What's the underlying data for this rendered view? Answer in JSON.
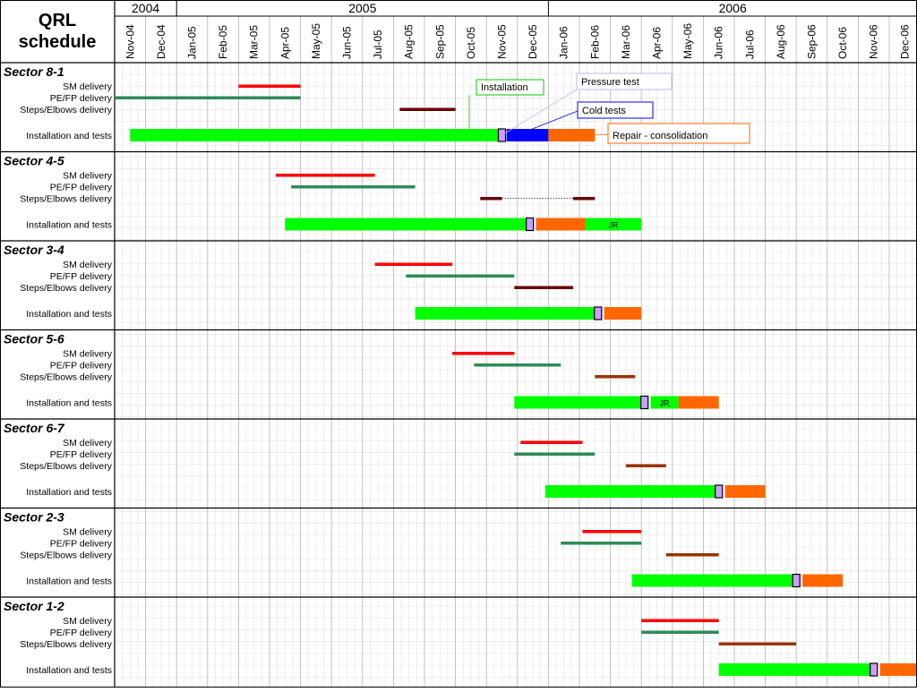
{
  "title_lines": [
    "QRL",
    "schedule"
  ],
  "years": [
    {
      "label": "2004",
      "start": 0,
      "end": 2
    },
    {
      "label": "2005",
      "start": 2,
      "end": 14
    },
    {
      "label": "2006",
      "start": 14,
      "end": 26
    }
  ],
  "months": [
    "Nov-04",
    "Dec-04",
    "Jan-05",
    "Feb-05",
    "Mar-05",
    "Apr-05",
    "May-05",
    "Jun-05",
    "Jul-05",
    "Aug-05",
    "Sep-05",
    "Oct-05",
    "Nov-05",
    "Dec-05",
    "Jan-06",
    "Feb-06",
    "Mar-06",
    "Apr-06",
    "May-06",
    "Jun-06",
    "Jul-06",
    "Aug-06",
    "Sep-06",
    "Oct-06",
    "Nov-06",
    "Dec-06"
  ],
  "row_labels": [
    "SM delivery",
    "PE/FP delivery",
    "Steps/Elbows delivery",
    "Installation and tests"
  ],
  "colors": {
    "sm": "#ff0000",
    "pefp": "#2e8b57",
    "steps_dark": "#6b0000",
    "steps_brown": "#993300",
    "installation": "#00ff00",
    "cold": "#0000ff",
    "repair": "#ff6600",
    "marker": "#c8a0ff",
    "grid": "#cccccc",
    "separator": "#000000"
  },
  "callouts": {
    "installation": "Installation",
    "pressure": "Pressure test",
    "cold": "Cold tests",
    "repair": "Repair - consolidation"
  },
  "chart_data": {
    "type": "gantt",
    "unit": "months from Nov-04",
    "sectors": [
      {
        "name": "Sector 8-1",
        "sm": [
          4,
          6
        ],
        "pefp": [
          0,
          6
        ],
        "steps": [
          [
            9.2,
            11
          ]
        ],
        "steps_color": "dark",
        "install": [
          0.5,
          12.5
        ],
        "marker": 12.5,
        "cold": [
          12.65,
          14
        ],
        "repair": [
          14,
          15.5
        ],
        "jr": ""
      },
      {
        "name": "Sector 4-5",
        "sm": [
          5.2,
          8.4
        ],
        "pefp": [
          5.7,
          9.7
        ],
        "steps": [
          [
            11.8,
            12.5
          ],
          [
            14.8,
            15.5
          ]
        ],
        "steps_dotted": [
          12.5,
          14.8
        ],
        "steps_color": "dark",
        "install": [
          5.5,
          13.3
        ],
        "marker": 13.4,
        "repair": [
          13.6,
          15.2
        ],
        "post": [
          15.2,
          17
        ],
        "jr": "JR"
      },
      {
        "name": "Sector 3-4",
        "sm": [
          8.4,
          10.9
        ],
        "pefp": [
          9.4,
          12.9
        ],
        "steps": [
          [
            12.9,
            14.8
          ]
        ],
        "steps_color": "dark",
        "install": [
          9.7,
          15.5
        ],
        "marker": 15.6,
        "repair": [
          15.8,
          17
        ],
        "jr": ""
      },
      {
        "name": "Sector 5-6",
        "sm": [
          10.9,
          12.9
        ],
        "pefp": [
          11.6,
          14.4
        ],
        "steps": [
          [
            15.5,
            16.8
          ]
        ],
        "steps_color": "brown",
        "install": [
          12.9,
          17
        ],
        "marker": 17.1,
        "post": [
          17.3,
          18.2
        ],
        "repair": [
          18.2,
          19.5
        ],
        "jr": "JR"
      },
      {
        "name": "Sector 6-7",
        "sm": [
          13.1,
          15.1
        ],
        "pefp": [
          12.9,
          15.5
        ],
        "steps": [
          [
            16.5,
            17.8
          ]
        ],
        "steps_color": "brown",
        "install": [
          13.9,
          19.4
        ],
        "marker": 19.5,
        "repair": [
          19.7,
          21
        ],
        "jr": ""
      },
      {
        "name": "Sector 2-3",
        "sm": [
          15.1,
          17
        ],
        "pefp": [
          14.4,
          17
        ],
        "steps": [
          [
            17.8,
            19.5
          ]
        ],
        "steps_color": "brown",
        "install": [
          16.7,
          21.9
        ],
        "marker": 22,
        "repair": [
          22.2,
          23.5
        ],
        "jr": ""
      },
      {
        "name": "Sector 1-2",
        "sm": [
          17,
          19.5
        ],
        "pefp": [
          17,
          19.5
        ],
        "steps": [
          [
            19.5,
            22
          ]
        ],
        "steps_color": "brown",
        "install": [
          19.5,
          24.4
        ],
        "marker": 24.5,
        "repair": [
          24.7,
          26
        ],
        "jr": ""
      }
    ]
  }
}
